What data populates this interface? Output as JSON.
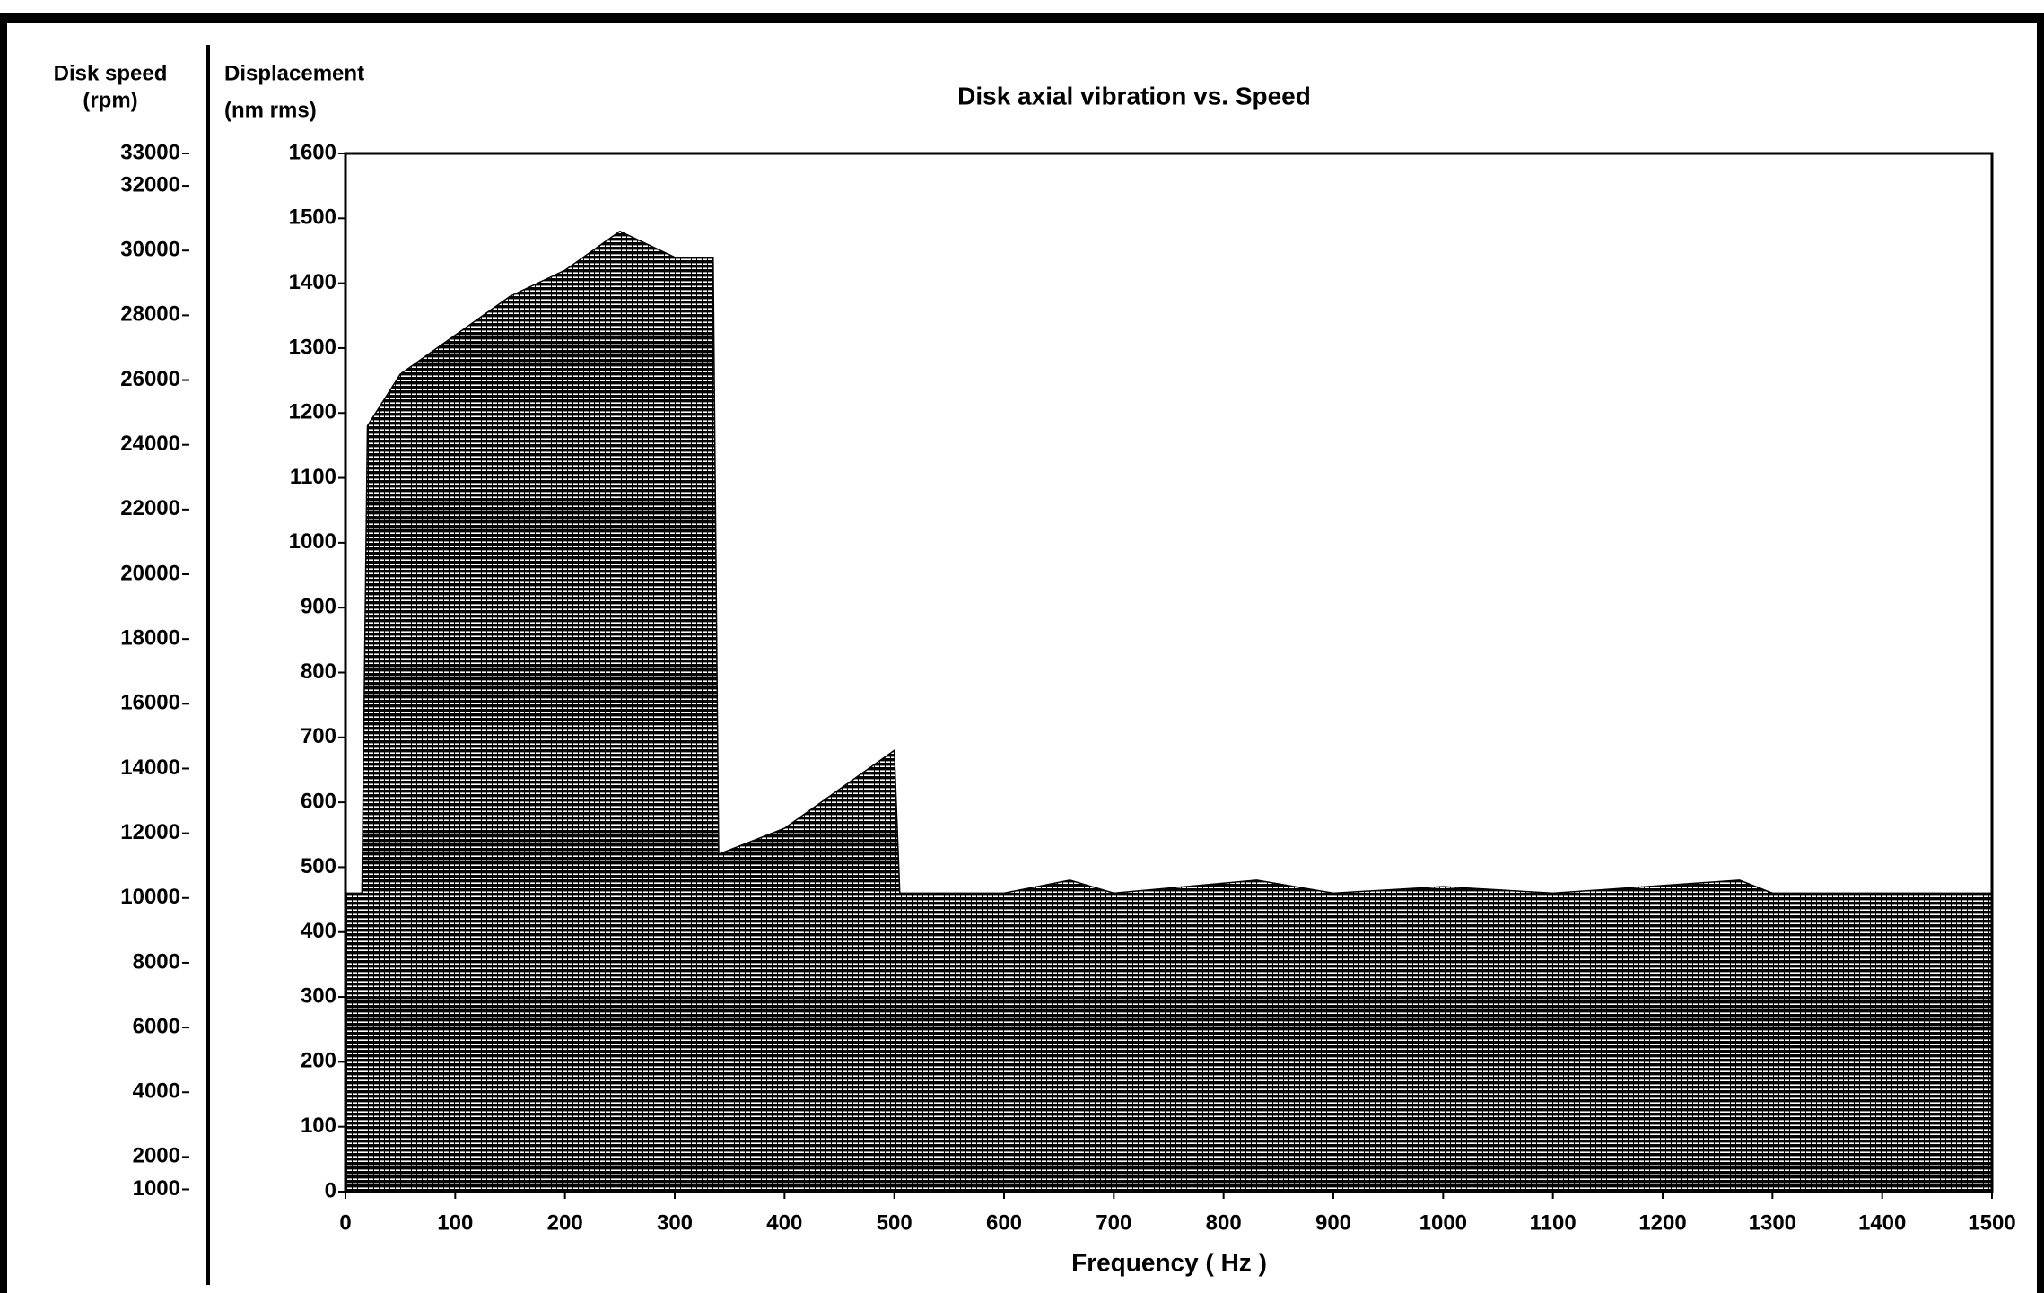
{
  "chart_data": {
    "type": "area",
    "title": "Disk axial vibration vs. Speed",
    "x_label": "Frequency ( Hz )",
    "y_label": "Displacement",
    "y_unit": "(nm rms)",
    "y2_label": "Disk speed",
    "y2_unit": "(rpm)",
    "x": [
      0,
      15,
      20,
      50,
      100,
      150,
      200,
      250,
      300,
      335,
      340,
      400,
      450,
      500,
      505,
      600,
      660,
      700,
      830,
      900,
      1000,
      1100,
      1270,
      1300,
      1500
    ],
    "series": [
      {
        "color": "#000000",
        "values": [
          460,
          460,
          1180,
          1260,
          1320,
          1380,
          1420,
          1480,
          1440,
          1440,
          520,
          560,
          620,
          680,
          460,
          460,
          480,
          460,
          480,
          460,
          470,
          460,
          480,
          460,
          460
        ]
      }
    ],
    "xlim": [
      0,
      1500
    ],
    "xticks": [
      0,
      100,
      200,
      300,
      400,
      500,
      600,
      700,
      800,
      900,
      1000,
      1100,
      1200,
      1300,
      1400,
      1500
    ],
    "ylim": [
      0,
      1600
    ],
    "yticks": [
      0,
      100,
      200,
      300,
      400,
      500,
      600,
      700,
      800,
      900,
      1000,
      1100,
      1200,
      1300,
      1400,
      1500,
      1600
    ],
    "y2lim": [
      930,
      33000
    ],
    "y2ticks": [
      1000,
      2000,
      4000,
      6000,
      8000,
      10000,
      12000,
      14000,
      16000,
      18000,
      20000,
      22000,
      24000,
      26000,
      28000,
      30000,
      32000,
      33000
    ]
  }
}
